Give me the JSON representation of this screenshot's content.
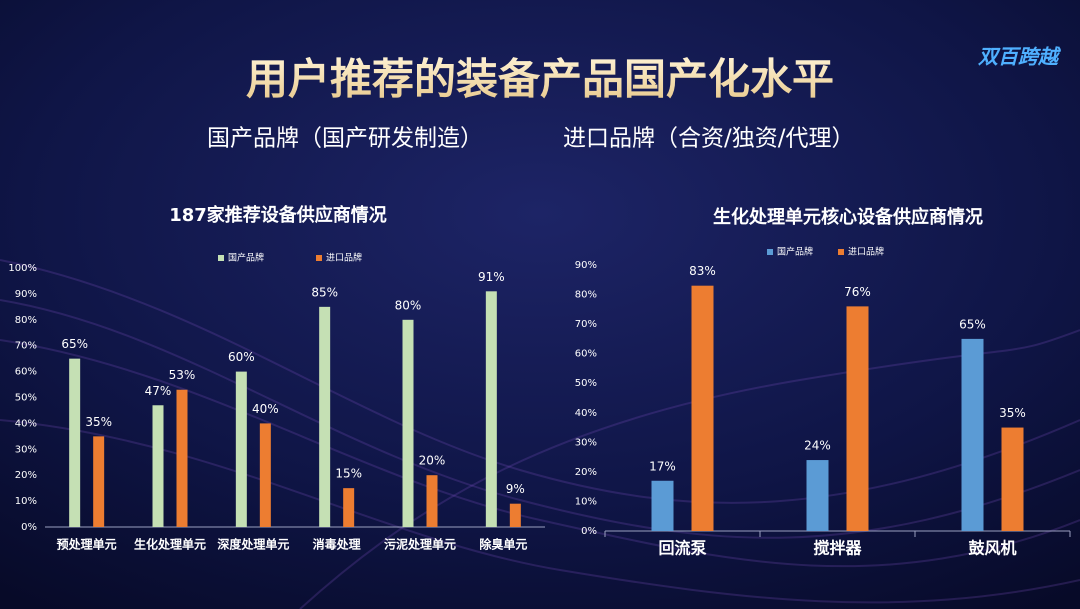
{
  "header": {
    "title": "用户推荐的装备产品国产化水平",
    "subtitle_left": "国产品牌（国产研发制造）",
    "subtitle_right": "进口品牌（合资/独资/代理）",
    "logo": "双百跨越"
  },
  "chart_data": [
    {
      "type": "bar",
      "title": "187家推荐设备供应商情况",
      "categories": [
        "预处理单元",
        "生化处理单元",
        "深度处理单元",
        "消毒处理",
        "污泥处理单元",
        "除臭单元"
      ],
      "series": [
        {
          "name": "国产品牌",
          "color": "#c5e0b4",
          "values": [
            65,
            47,
            60,
            85,
            80,
            91
          ],
          "value_labels": [
            "65%",
            "47%",
            "60%",
            "85%",
            "80%",
            "91%"
          ]
        },
        {
          "name": "进口品牌",
          "color": "#ed7d31",
          "values": [
            35,
            53,
            40,
            15,
            20,
            9
          ],
          "value_labels": [
            "35%",
            "53%",
            "40%",
            "15%",
            "20%",
            "9%"
          ]
        }
      ],
      "ylim": [
        0,
        100
      ],
      "yticks": [
        {
          "value": 0,
          "label": "0%"
        },
        {
          "value": 10,
          "label": "10%"
        },
        {
          "value": 20,
          "label": "20%"
        },
        {
          "value": 30,
          "label": "30%"
        },
        {
          "value": 40,
          "label": "40%"
        },
        {
          "value": 50,
          "label": "50%"
        },
        {
          "value": 60,
          "label": "60%"
        },
        {
          "value": 70,
          "label": "70%"
        },
        {
          "value": 80,
          "label": "80%"
        },
        {
          "value": 90,
          "label": "90%"
        },
        {
          "value": 100,
          "label": "100%"
        }
      ]
    },
    {
      "type": "bar",
      "title": "生化处理单元核心设备供应商情况",
      "categories": [
        "回流泵",
        "搅拌器",
        "鼓风机"
      ],
      "series": [
        {
          "name": "国产品牌",
          "color": "#5b9bd5",
          "values": [
            17,
            24,
            65
          ],
          "value_labels": [
            "17%",
            "24%",
            "65%"
          ]
        },
        {
          "name": "进口品牌",
          "color": "#ed7d31",
          "values": [
            83,
            76,
            35
          ],
          "value_labels": [
            "83%",
            "76%",
            "35%"
          ]
        }
      ],
      "ylim": [
        0,
        90
      ],
      "yticks": [
        {
          "value": 0,
          "label": "0%"
        },
        {
          "value": 10,
          "label": "10%"
        },
        {
          "value": 20,
          "label": "20%"
        },
        {
          "value": 30,
          "label": "30%"
        },
        {
          "value": 40,
          "label": "40%"
        },
        {
          "value": 50,
          "label": "50%"
        },
        {
          "value": 60,
          "label": "60%"
        },
        {
          "value": 70,
          "label": "70%"
        },
        {
          "value": 80,
          "label": "80%"
        },
        {
          "value": 90,
          "label": "90%"
        }
      ]
    }
  ]
}
